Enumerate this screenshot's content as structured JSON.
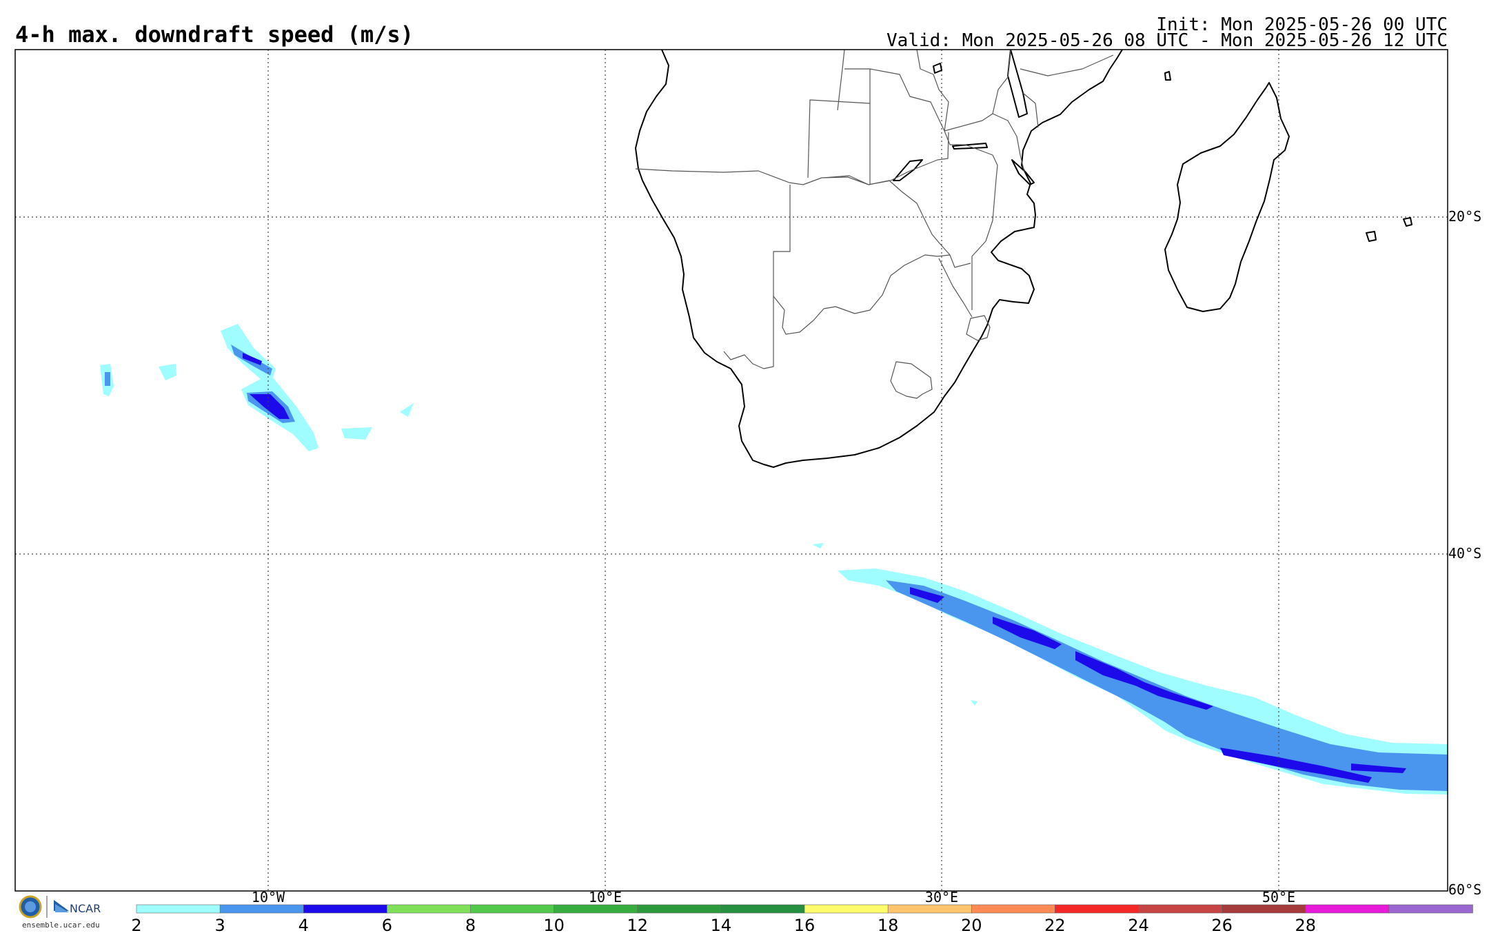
{
  "header": {
    "title": "4-h max. downdraft speed (m/s)",
    "init": "Init: Mon 2025-05-26 00 UTC",
    "valid": "Valid: Mon 2025-05-26 08 UTC - Mon 2025-05-26 12 UTC"
  },
  "map": {
    "longitude_labels": [
      "10°W",
      "10°E",
      "30°E",
      "50°E"
    ],
    "latitude_labels": [
      "20°S",
      "40°S",
      "60°S"
    ]
  },
  "colorbar": {
    "ticks": [
      "2",
      "3",
      "4",
      "6",
      "8",
      "10",
      "12",
      "14",
      "16",
      "18",
      "20",
      "22",
      "24",
      "26",
      "28"
    ],
    "colors": [
      "#9ffcff",
      "#4a96ef",
      "#1c0aea",
      "#80e05a",
      "#52c94a",
      "#36ad3e",
      "#2a9a3c",
      "#259040",
      "#fffb6a",
      "#ffc46c",
      "#ff8a54",
      "#f52828",
      "#c74444",
      "#a43a3a",
      "#e61ad8",
      "#9a66cf"
    ]
  },
  "footer": {
    "org_logo": "NCAR",
    "url": "ensemble.ucar.edu"
  },
  "shading_colors": {
    "light": "#9ffcff",
    "medium": "#4a96ef",
    "dark": "#1c0aea"
  }
}
